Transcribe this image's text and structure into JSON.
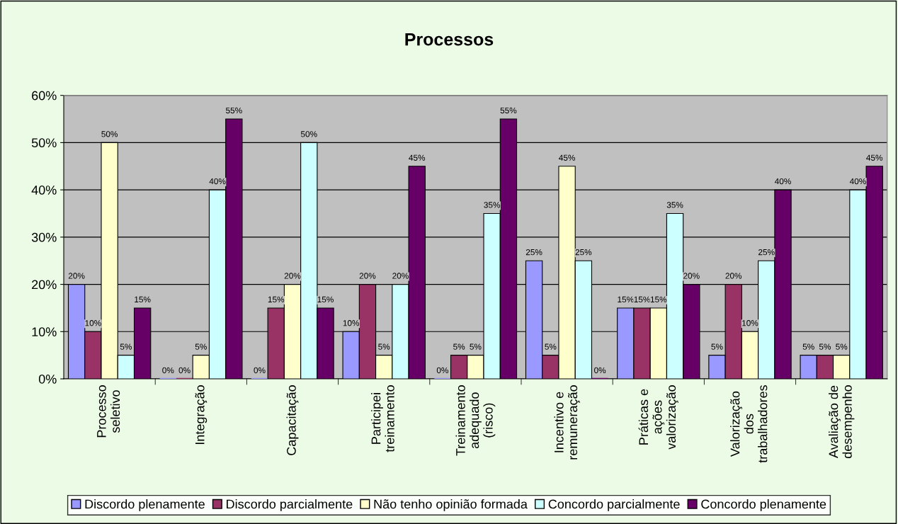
{
  "chart_data": {
    "type": "bar",
    "title": "Processos",
    "categories": [
      "Processo\nseletivo",
      "Integração",
      "Capacitação",
      "Participei\ntreinamento",
      "Treinamento\nadequado\n(risco)",
      "Incentivo e\nremuneração",
      "Práticas e\nações\nvalorização",
      "Valorização\ndos\ntrabalhadores",
      "Avaliação de\ndesempenho"
    ],
    "series": [
      {
        "name": "Discordo plenamente",
        "color": "#9999ff",
        "values": [
          20,
          0,
          0,
          10,
          0,
          25,
          15,
          5,
          5
        ],
        "value_labels": [
          "20%",
          "0%",
          "0%",
          "10%",
          "0%",
          "25%",
          "15%",
          "5%",
          "5%"
        ]
      },
      {
        "name": "Discordo parcialmente",
        "color": "#993366",
        "values": [
          10,
          0,
          15,
          20,
          5,
          5,
          15,
          20,
          5
        ],
        "value_labels": [
          "10%",
          "0%",
          "15%",
          "20%",
          "5%",
          "5%",
          "15%",
          "20%",
          "5%"
        ]
      },
      {
        "name": "Não tenho opinião formada",
        "color": "#ffffcc",
        "values": [
          50,
          5,
          20,
          5,
          5,
          45,
          15,
          10,
          5
        ],
        "value_labels": [
          "50%",
          "5%",
          "20%",
          "5%",
          "5%",
          "45%",
          "15%",
          "10%",
          "5%"
        ]
      },
      {
        "name": "Concordo parcialmente",
        "color": "#ccffff",
        "values": [
          5,
          40,
          50,
          20,
          35,
          25,
          35,
          25,
          40
        ],
        "value_labels": [
          "5%",
          "40%",
          "50%",
          "20%",
          "35%",
          "25%",
          "35%",
          "25%",
          "40%"
        ]
      },
      {
        "name": "Concordo plenamente",
        "color": "#660066",
        "values": [
          15,
          55,
          15,
          45,
          55,
          0,
          20,
          40,
          45
        ],
        "value_labels": [
          "15%",
          "55%",
          "15%",
          "45%",
          "55%",
          "0%",
          "20%",
          "40%",
          "45%"
        ]
      }
    ],
    "ylim": [
      0,
      60
    ],
    "yticks": [
      {
        "value": 0,
        "label": "0%"
      },
      {
        "value": 10,
        "label": "10%"
      },
      {
        "value": 20,
        "label": "20%"
      },
      {
        "value": 30,
        "label": "30%"
      },
      {
        "value": 40,
        "label": "40%"
      },
      {
        "value": 50,
        "label": "50%"
      },
      {
        "value": 60,
        "label": "60%"
      }
    ],
    "grid": "y",
    "legend": "bottom"
  }
}
